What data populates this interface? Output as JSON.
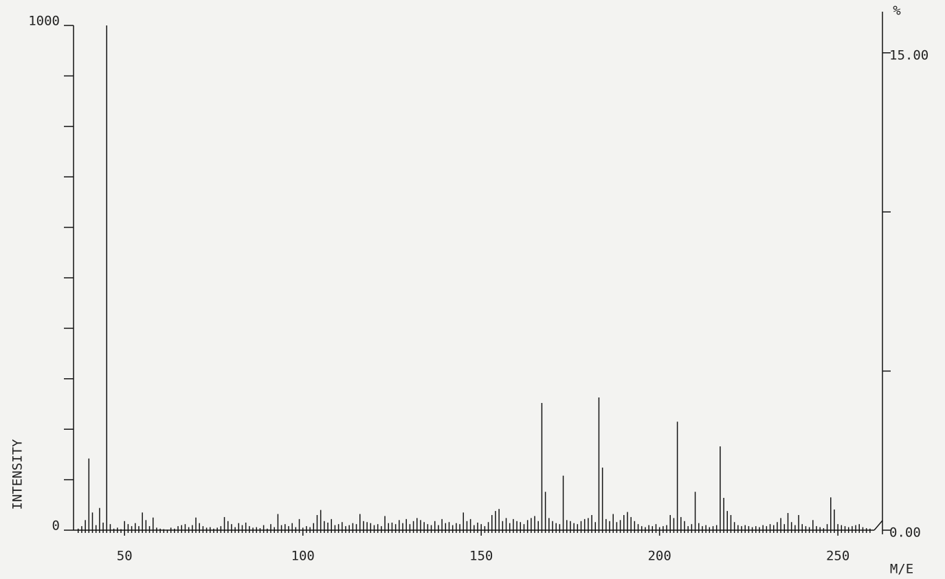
{
  "chart_data": {
    "type": "bar",
    "x_label": "M/E",
    "y_label": "INTENSITY",
    "y2_label": "%",
    "x": [
      37,
      38,
      39,
      40,
      41,
      42,
      43,
      44,
      45,
      46,
      47,
      48,
      49,
      50,
      51,
      52,
      53,
      54,
      55,
      56,
      57,
      58,
      59,
      60,
      61,
      62,
      63,
      64,
      65,
      66,
      67,
      68,
      69,
      70,
      71,
      72,
      73,
      74,
      75,
      76,
      77,
      78,
      79,
      80,
      81,
      82,
      83,
      84,
      85,
      86,
      87,
      88,
      89,
      90,
      91,
      92,
      93,
      94,
      95,
      96,
      97,
      98,
      99,
      100,
      101,
      102,
      103,
      104,
      105,
      106,
      107,
      108,
      109,
      110,
      111,
      112,
      113,
      114,
      115,
      116,
      117,
      118,
      119,
      120,
      121,
      122,
      123,
      124,
      125,
      126,
      127,
      128,
      129,
      130,
      131,
      132,
      133,
      134,
      135,
      136,
      137,
      138,
      139,
      140,
      141,
      142,
      143,
      144,
      145,
      146,
      147,
      148,
      149,
      150,
      151,
      152,
      153,
      154,
      155,
      156,
      157,
      158,
      159,
      160,
      161,
      162,
      163,
      164,
      165,
      166,
      167,
      168,
      169,
      170,
      171,
      172,
      173,
      174,
      175,
      176,
      177,
      178,
      179,
      180,
      181,
      182,
      183,
      184,
      185,
      186,
      187,
      188,
      189,
      190,
      191,
      192,
      193,
      194,
      195,
      196,
      197,
      198,
      199,
      200,
      201,
      202,
      203,
      204,
      205,
      206,
      207,
      208,
      209,
      210,
      211,
      212,
      213,
      214,
      215,
      216,
      217,
      218,
      219,
      220,
      221,
      222,
      223,
      224,
      225,
      226,
      227,
      228,
      229,
      230,
      231,
      232,
      233,
      234,
      235,
      236,
      237,
      238,
      239,
      240,
      241,
      242,
      243,
      244,
      245,
      246,
      247,
      248,
      249,
      250,
      251,
      252,
      253,
      254,
      255,
      256,
      257,
      258,
      259
    ],
    "values": [
      3,
      8,
      20,
      142,
      35,
      10,
      44,
      15,
      1000,
      12,
      3,
      5,
      2,
      18,
      12,
      8,
      14,
      8,
      35,
      20,
      8,
      25,
      5,
      3,
      2,
      1,
      5,
      3,
      8,
      10,
      12,
      6,
      10,
      25,
      14,
      8,
      5,
      6,
      3,
      5,
      8,
      26,
      18,
      12,
      6,
      14,
      10,
      15,
      8,
      5,
      6,
      4,
      10,
      3,
      12,
      6,
      32,
      10,
      12,
      8,
      14,
      6,
      22,
      5,
      8,
      6,
      14,
      30,
      40,
      18,
      15,
      22,
      10,
      12,
      16,
      8,
      10,
      14,
      12,
      32,
      18,
      16,
      14,
      10,
      12,
      8,
      28,
      14,
      15,
      12,
      20,
      14,
      22,
      12,
      18,
      24,
      20,
      16,
      12,
      10,
      18,
      10,
      22,
      14,
      16,
      10,
      14,
      12,
      35,
      18,
      22,
      10,
      15,
      12,
      8,
      16,
      30,
      38,
      42,
      18,
      24,
      14,
      22,
      18,
      16,
      12,
      20,
      24,
      28,
      18,
      252,
      76,
      24,
      18,
      14,
      12,
      108,
      20,
      18,
      14,
      12,
      18,
      22,
      24,
      30,
      16,
      263,
      124,
      22,
      18,
      32,
      16,
      20,
      30,
      36,
      26,
      18,
      12,
      8,
      6,
      10,
      8,
      12,
      6,
      8,
      10,
      30,
      24,
      215,
      26,
      18,
      8,
      12,
      76,
      14,
      8,
      10,
      6,
      8,
      10,
      166,
      64,
      38,
      30,
      16,
      10,
      8,
      10,
      8,
      6,
      8,
      6,
      10,
      8,
      12,
      10,
      16,
      24,
      12,
      34,
      16,
      10,
      30,
      12,
      8,
      6,
      20,
      8,
      6,
      4,
      12,
      65,
      41,
      12,
      10,
      8,
      6,
      8,
      10,
      12,
      6,
      4,
      3
    ],
    "color": "#111111",
    "xlim": [
      35.7,
      262.5
    ],
    "xticks": [
      50,
      100,
      150,
      200,
      250
    ],
    "ylim": [
      0,
      1000
    ],
    "yticks": [
      0,
      1000
    ],
    "y_minor_ticks": [
      100,
      200,
      300,
      400,
      500,
      600,
      700,
      800,
      900
    ],
    "y2lim": [
      0,
      15.86
    ],
    "y2ticks": [
      {
        "value": 0,
        "label": "0.00"
      },
      {
        "value": 15,
        "label": "15.00"
      }
    ],
    "y2_minor_ticks": [
      5,
      10
    ]
  }
}
